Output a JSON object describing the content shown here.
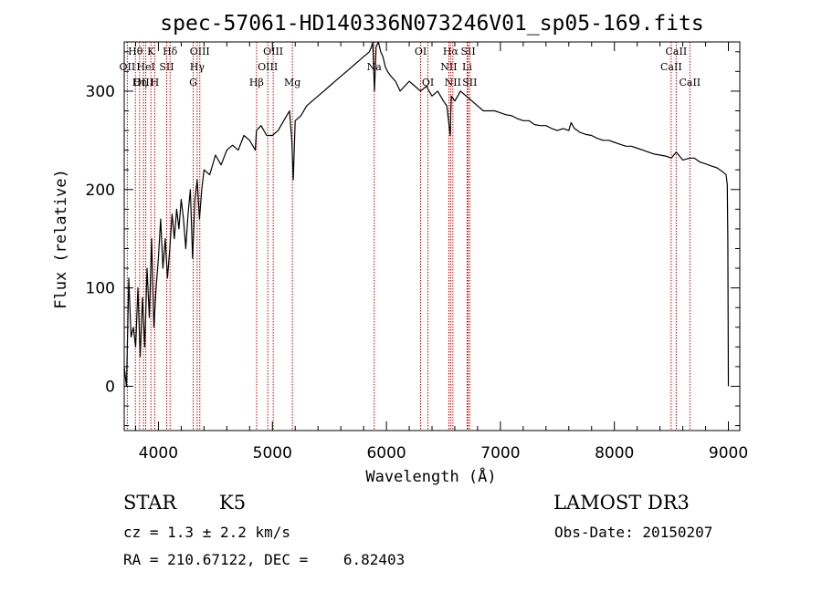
{
  "chart_data": {
    "type": "line",
    "title": "spec-57061-HD140336N073246V01_sp05-169.fits",
    "xlabel": "Wavelength (Å)",
    "ylabel": "Flux (relative)",
    "xlim": [
      3700,
      9100
    ],
    "ylim": [
      -45,
      350
    ],
    "xticks": [
      4000,
      5000,
      6000,
      7000,
      8000,
      9000
    ],
    "yticks": [
      0,
      100,
      200,
      300
    ],
    "grid": false,
    "series": [
      {
        "name": "flux",
        "x": [
          3700,
          3720,
          3740,
          3760,
          3780,
          3800,
          3820,
          3840,
          3860,
          3880,
          3900,
          3920,
          3940,
          3960,
          3980,
          4000,
          4020,
          4040,
          4060,
          4080,
          4100,
          4120,
          4140,
          4160,
          4180,
          4200,
          4220,
          4240,
          4260,
          4280,
          4300,
          4320,
          4340,
          4360,
          4380,
          4400,
          4450,
          4500,
          4550,
          4600,
          4650,
          4700,
          4750,
          4800,
          4850,
          4860,
          4900,
          4950,
          5000,
          5050,
          5100,
          5150,
          5170,
          5183,
          5200,
          5250,
          5300,
          5350,
          5400,
          5450,
          5500,
          5550,
          5600,
          5650,
          5700,
          5750,
          5800,
          5850,
          5870,
          5880,
          5895,
          5910,
          5930,
          5950,
          5970,
          5990,
          6010,
          6040,
          6080,
          6120,
          6160,
          6200,
          6250,
          6300,
          6350,
          6400,
          6450,
          6500,
          6530,
          6560,
          6565,
          6570,
          6600,
          6650,
          6700,
          6750,
          6800,
          6850,
          6900,
          6950,
          7000,
          7050,
          7100,
          7150,
          7200,
          7250,
          7300,
          7350,
          7400,
          7450,
          7500,
          7550,
          7600,
          7620,
          7650,
          7700,
          7750,
          7800,
          7850,
          7900,
          7950,
          8000,
          8050,
          8100,
          8150,
          8200,
          8250,
          8300,
          8350,
          8400,
          8450,
          8500,
          8542,
          8600,
          8662,
          8700,
          8750,
          8800,
          8850,
          8900,
          8950,
          8980,
          8990,
          8995,
          9000
        ],
        "values": [
          20,
          0,
          110,
          50,
          60,
          40,
          100,
          30,
          90,
          40,
          120,
          70,
          150,
          60,
          100,
          130,
          170,
          120,
          150,
          110,
          140,
          175,
          150,
          180,
          160,
          190,
          170,
          140,
          175,
          200,
          130,
          190,
          210,
          170,
          200,
          220,
          215,
          235,
          225,
          240,
          245,
          240,
          255,
          250,
          240,
          260,
          265,
          255,
          255,
          260,
          270,
          280,
          250,
          210,
          270,
          275,
          285,
          290,
          295,
          300,
          305,
          310,
          315,
          320,
          325,
          330,
          335,
          340,
          345,
          350,
          300,
          345,
          350,
          340,
          335,
          325,
          320,
          315,
          310,
          300,
          305,
          310,
          305,
          300,
          305,
          295,
          300,
          290,
          285,
          255,
          280,
          295,
          290,
          300,
          295,
          290,
          285,
          280,
          280,
          280,
          278,
          276,
          275,
          272,
          270,
          270,
          266,
          265,
          265,
          262,
          260,
          262,
          260,
          268,
          262,
          258,
          256,
          255,
          252,
          250,
          250,
          248,
          246,
          244,
          244,
          242,
          240,
          238,
          236,
          235,
          234,
          232,
          238,
          230,
          232,
          232,
          228,
          226,
          224,
          222,
          218,
          215,
          205,
          150,
          0
        ]
      }
    ],
    "line_markers": [
      {
        "label": "Hθ",
        "wl": 3798,
        "row": 0
      },
      {
        "label": "OII",
        "wl": 3727,
        "row": 1
      },
      {
        "label": "OIII",
        "wl": 3869,
        "row": 2
      },
      {
        "label": "K",
        "wl": 3934,
        "row": 0
      },
      {
        "label": "H",
        "wl": 3968,
        "row": 2
      },
      {
        "label": "Hη",
        "wl": 3835,
        "row": 2
      },
      {
        "label": "HeI",
        "wl": 3889,
        "row": 1
      },
      {
        "label": "SII",
        "wl": 4072,
        "row": 1
      },
      {
        "label": "Hδ",
        "wl": 4102,
        "row": 0
      },
      {
        "label": "OIII",
        "wl": 4363,
        "row": 0
      },
      {
        "label": "Hγ",
        "wl": 4340,
        "row": 1
      },
      {
        "label": "G",
        "wl": 4305,
        "row": 2
      },
      {
        "label": "Hβ",
        "wl": 4861,
        "row": 2
      },
      {
        "label": "OIII",
        "wl": 5007,
        "row": 0
      },
      {
        "label": "OIII",
        "wl": 4959,
        "row": 1
      },
      {
        "label": "Mg",
        "wl": 5175,
        "row": 2
      },
      {
        "label": "Na",
        "wl": 5893,
        "row": 1
      },
      {
        "label": "OI",
        "wl": 6300,
        "row": 0
      },
      {
        "label": "OI",
        "wl": 6364,
        "row": 2
      },
      {
        "label": "Hα",
        "wl": 6563,
        "row": 0
      },
      {
        "label": "NII",
        "wl": 6548,
        "row": 1
      },
      {
        "label": "NII",
        "wl": 6583,
        "row": 2
      },
      {
        "label": "SII",
        "wl": 6717,
        "row": 0
      },
      {
        "label": "Li",
        "wl": 6708,
        "row": 1
      },
      {
        "label": "SII",
        "wl": 6731,
        "row": 2
      },
      {
        "label": "CaII",
        "wl": 8542,
        "row": 0
      },
      {
        "label": "CaII",
        "wl": 8498,
        "row": 1
      },
      {
        "label": "CaII",
        "wl": 8662,
        "row": 2
      }
    ],
    "colors": {
      "spectrum": "#000000",
      "markers": "#cc0000",
      "axes": "#000000"
    }
  },
  "info": {
    "object_class": "STAR",
    "subclass": "K5",
    "survey": "LAMOST DR3",
    "cz_line": "cz = 1.3 ± 2.2 km/s",
    "obs_date_line": "Obs-Date: 20150207",
    "coords_line": "RA = 210.67122, DEC =    6.82403"
  }
}
